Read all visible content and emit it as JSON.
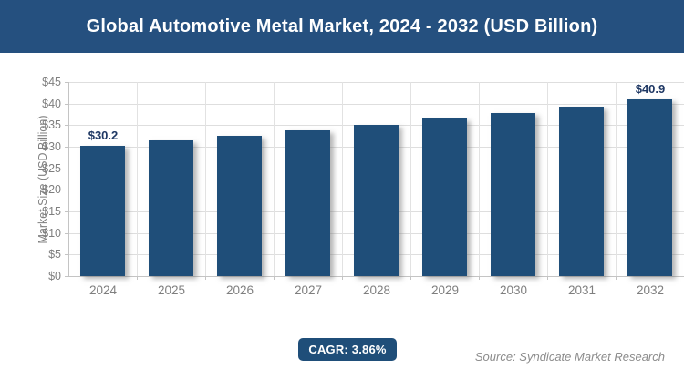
{
  "header": {
    "title": "Global Automotive Metal Market, 2024 - 2032 (USD Billion)",
    "bg_color": "#25507F",
    "text_color": "#FFFFFF"
  },
  "chart_data": {
    "type": "bar",
    "title": "Global Automotive Metal Market, 2024 - 2032 (USD Billion)",
    "categories": [
      "2024",
      "2025",
      "2026",
      "2027",
      "2028",
      "2029",
      "2030",
      "2031",
      "2032"
    ],
    "values": [
      30.2,
      31.4,
      32.6,
      33.8,
      35.1,
      36.5,
      37.9,
      39.4,
      40.9
    ],
    "bar_labels": [
      "$30.2",
      "",
      "",
      "",
      "",
      "",
      "",
      "",
      "$40.9"
    ],
    "xlabel": "",
    "ylabel": "Market Size (USD Billion)",
    "ylim": [
      0,
      45
    ],
    "ytick_step": 5,
    "ytick_labels": [
      "$0",
      "$5",
      "$10",
      "$15",
      "$20",
      "$25",
      "$30",
      "$35",
      "$40",
      "$45"
    ],
    "grid": true,
    "legend": "none",
    "bar_color": "#1F4E79",
    "bar_label_color": "#1F3864",
    "axis_text_color": "#7F7F7F",
    "gridline_color": "#DEDEDE"
  },
  "footer": {
    "cagr_label": "CAGR: 3.86%",
    "badge_color": "#1F4E79",
    "source": "Source: Syndicate Market Research"
  }
}
